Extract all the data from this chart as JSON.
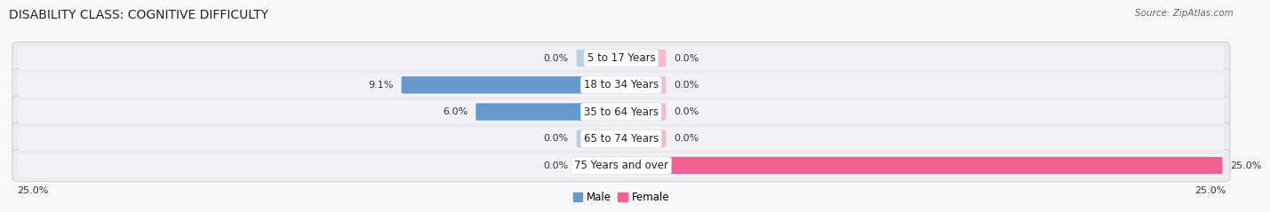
{
  "title": "DISABILITY CLASS: COGNITIVE DIFFICULTY",
  "source": "Source: ZipAtlas.com",
  "categories": [
    "5 to 17 Years",
    "18 to 34 Years",
    "35 to 64 Years",
    "65 to 74 Years",
    "75 Years and over"
  ],
  "male_values": [
    0.0,
    9.1,
    6.0,
    0.0,
    0.0
  ],
  "female_values": [
    0.0,
    0.0,
    0.0,
    0.0,
    25.0
  ],
  "max_val": 25.0,
  "male_color_light": "#b8cfe8",
  "male_color_vivid": "#6699cc",
  "female_color_light": "#f8b8cc",
  "female_color_vivid": "#f06090",
  "row_bg_color": "#e8e8ec",
  "row_inner_color": "#f0f0f4",
  "bg_color": "#f8f8f8",
  "title_fontsize": 10,
  "label_fontsize": 8.5,
  "value_fontsize": 8.0,
  "source_fontsize": 7.5,
  "legend_fontsize": 8.5
}
